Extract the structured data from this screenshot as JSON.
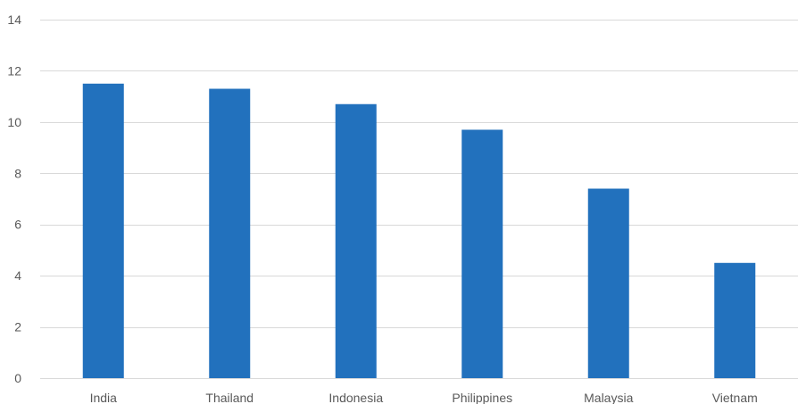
{
  "chart_data": {
    "type": "bar",
    "title": "",
    "xlabel": "",
    "ylabel": "",
    "categories": [
      "India",
      "Thailand",
      "Indonesia",
      "Philippines",
      "Malaysia",
      "Vietnam"
    ],
    "values": [
      11.5,
      11.3,
      10.7,
      9.7,
      7.4,
      4.5
    ],
    "ylim": [
      0,
      14
    ],
    "yticks": [
      0,
      2,
      4,
      6,
      8,
      10,
      12,
      14
    ],
    "grid": true,
    "legend": "none",
    "colors": {
      "bar": "#2271bd",
      "grid": "#d9d9d9",
      "text": "#595959"
    }
  }
}
